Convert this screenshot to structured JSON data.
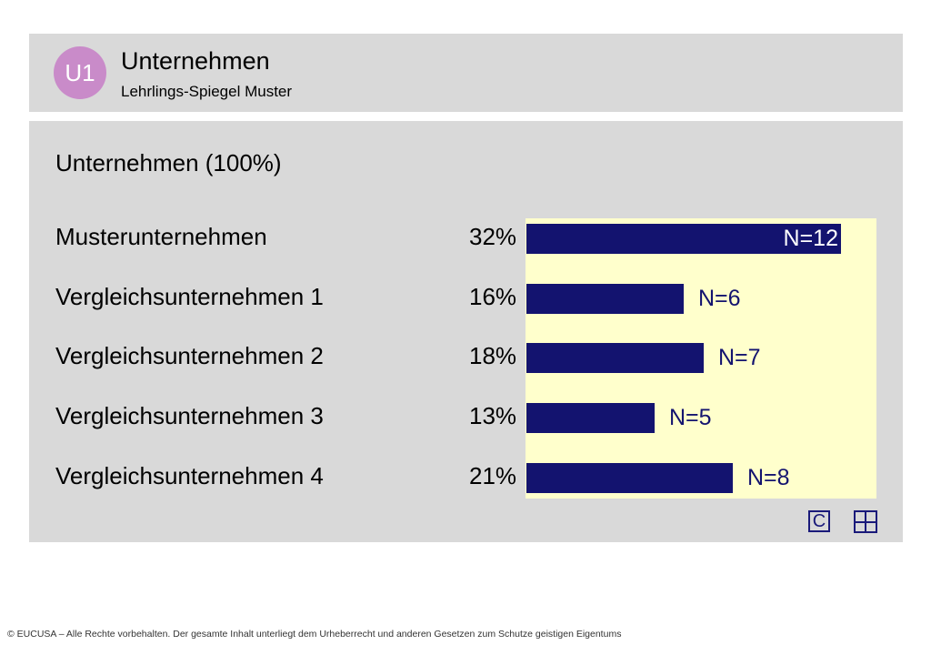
{
  "header": {
    "badge": "U1",
    "title": "Unternehmen",
    "subtitle": "Lehrlings-Spiegel Muster"
  },
  "colors": {
    "badge": "#c98bc9",
    "bar": "#13136f",
    "plot_bg": "#ffffcc",
    "panel_bg": "#d9d9d9"
  },
  "section_title": "Unternehmen (100%)",
  "chart_data": {
    "type": "bar",
    "orientation": "horizontal",
    "categories": [
      "Musterunternehmen",
      "Vergleichsunternehmen 1",
      "Vergleichsunternehmen 2",
      "Vergleichsunternehmen 3",
      "Vergleichsunternehmen 4"
    ],
    "value_labels": [
      "32%",
      "16%",
      "18%",
      "13%",
      "21%"
    ],
    "values": [
      32,
      16,
      18,
      13,
      21
    ],
    "n_labels": [
      "N=12",
      "N=6",
      "N=7",
      "N=5",
      "N=8"
    ],
    "xlim": [
      0,
      35
    ]
  },
  "controls": {
    "c_label": "C",
    "grid_icon": "grid-icon"
  },
  "footer": "© EUCUSA – Alle Rechte vorbehalten. Der gesamte Inhalt unterliegt dem Urheberrecht und anderen Gesetzen zum Schutze geistigen Eigentums"
}
